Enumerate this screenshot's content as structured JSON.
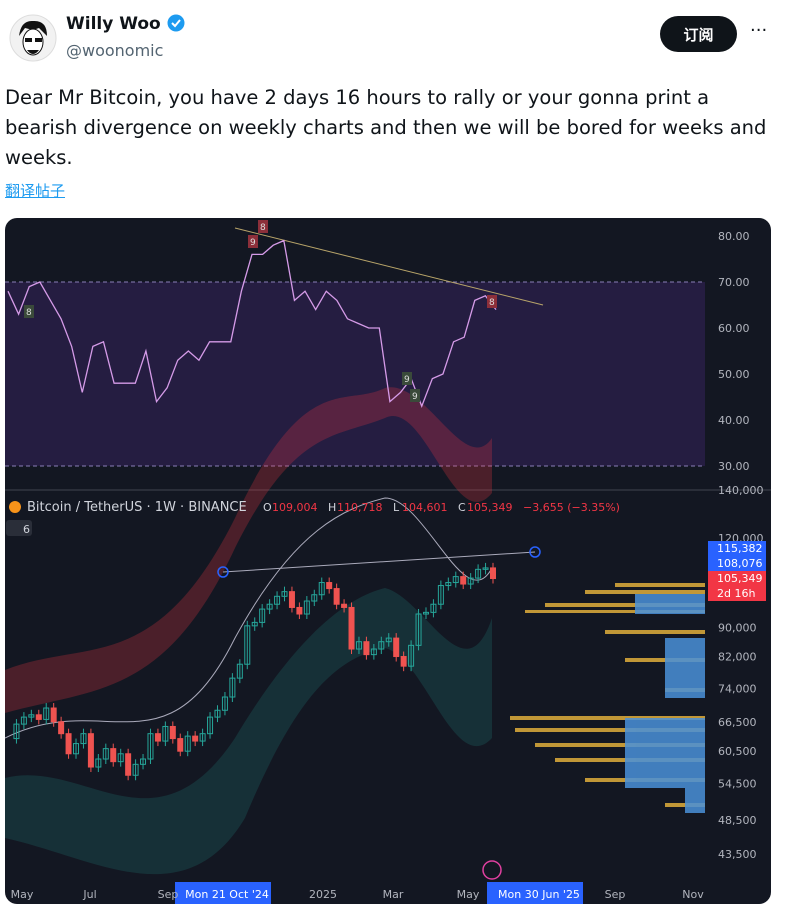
{
  "author": {
    "name": "Willy Woo",
    "handle": "@woonomic"
  },
  "subscribe": "订阅",
  "more": "···",
  "text": "Dear Mr Bitcoin, you have 2 days 16 hours to rally or your gonna print a bearish divergence on weekly charts and then we will be bored for weeks and weeks.",
  "translate": "翻译帖子",
  "chart": {
    "rsi_axis": [
      "80.00",
      "70.00",
      "60.00",
      "50.00",
      "40.00",
      "30.00"
    ],
    "rsi_labels": [
      "8",
      "9",
      "8",
      "9",
      "9",
      "8"
    ],
    "rsi": [
      68,
      63,
      69,
      70,
      66,
      62,
      56,
      46,
      56,
      57,
      48,
      48,
      48,
      55,
      44,
      47,
      53,
      55,
      53,
      57,
      57,
      57,
      68,
      76,
      76,
      78,
      79,
      66,
      68,
      64,
      68,
      66,
      62,
      61,
      60,
      60,
      44,
      46,
      49,
      43,
      49,
      50,
      57,
      58,
      66,
      67,
      64
    ],
    "symbol": "Bitcoin / TetherUS · 1W · BINANCE",
    "ohlc": [
      {
        "label": "O",
        "value": "109,004"
      },
      {
        "label": "H",
        "value": "110,718"
      },
      {
        "label": "L",
        "value": "104,601"
      },
      {
        "label": "C",
        "value": "105,349"
      }
    ],
    "change": "−3,655 (−3.35%)",
    "indicator": "6",
    "price_axis": [
      {
        "value": 140000,
        "label": "140,000"
      },
      {
        "value": 120000,
        "label": "120,000"
      },
      {
        "value": 90000,
        "label": "90,000"
      },
      {
        "value": 82000,
        "label": "82,000"
      },
      {
        "value": 74000,
        "label": "74,000"
      },
      {
        "value": 66500,
        "label": "66,500"
      },
      {
        "value": 60500,
        "label": "60,500"
      },
      {
        "value": 54500,
        "label": "54,500"
      },
      {
        "value": 48500,
        "label": "48,500"
      },
      {
        "value": 43500,
        "label": "43,500"
      }
    ],
    "ylim": [
      40000,
      140000
    ],
    "closes": [
      63000,
      66000,
      67500,
      68000,
      67000,
      69500,
      66500,
      64000,
      60000,
      62000,
      64000,
      57500,
      59000,
      61000,
      58500,
      60000,
      56000,
      58000,
      59000,
      64000,
      62500,
      65500,
      63000,
      60500,
      63500,
      62500,
      64000,
      67500,
      69000,
      72000,
      76500,
      80000,
      90500,
      91500,
      95500,
      97000,
      99500,
      101000,
      96000,
      94000,
      98000,
      100000,
      104000,
      102000,
      97000,
      96000,
      84000,
      86000,
      82500,
      84000,
      86000,
      87000,
      82000,
      79500,
      85000,
      94000,
      94500,
      97000,
      103000,
      104000,
      106000,
      103500,
      105500,
      108500,
      109004,
      105349
    ],
    "price_tags": [
      {
        "label": "115,382",
        "color": "#2962ff"
      },
      {
        "label": "108,076",
        "color": "#2962ff"
      },
      {
        "label": "105,349",
        "color": "#f23645"
      },
      {
        "label": "2d 16h",
        "color": "#f23645"
      }
    ],
    "xaxis": [
      {
        "label": "May",
        "x": 17
      },
      {
        "label": "Jul",
        "x": 85
      },
      {
        "label": "Sep",
        "x": 163
      },
      {
        "label": "Mon 21 Oct '24",
        "x": 222,
        "hl": true
      },
      {
        "label": "2025",
        "x": 318
      },
      {
        "label": "Mar",
        "x": 388
      },
      {
        "label": "May",
        "x": 463
      },
      {
        "label": "Mon 30 Jun '25",
        "x": 534,
        "hl": true
      },
      {
        "label": "Sep",
        "x": 610
      },
      {
        "label": "Nov",
        "x": 688
      }
    ]
  }
}
